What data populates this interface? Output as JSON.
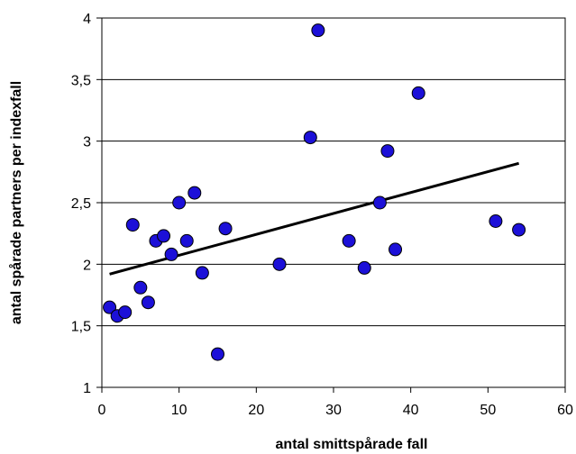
{
  "chart_data": {
    "type": "scatter",
    "title": "",
    "xlabel": "antal smittspårade fall",
    "ylabel": "antal spårade partners per indexfall",
    "xlim": [
      0,
      60
    ],
    "ylim": [
      1,
      4
    ],
    "x_ticks": [
      0,
      10,
      20,
      30,
      40,
      50,
      60
    ],
    "x_tick_labels": [
      "0",
      "10",
      "20",
      "30",
      "40",
      "50",
      "60"
    ],
    "y_ticks": [
      1,
      1.5,
      2,
      2.5,
      3,
      3.5,
      4
    ],
    "y_tick_labels": [
      "1",
      "1,5",
      "2",
      "2,5",
      "3",
      "3,5",
      "4"
    ],
    "grid": "horizontal",
    "legend": "none",
    "colors": {
      "points": "#1c10d8",
      "point_outline": "#000000",
      "trendline": "#000000",
      "grid": "#000000"
    },
    "series": [
      {
        "x": [
          1,
          2,
          3,
          4,
          5,
          6,
          7,
          8,
          9,
          10,
          11,
          12,
          13,
          15,
          16,
          23,
          27,
          28,
          32,
          34,
          36,
          37,
          38,
          41,
          51,
          54
        ],
        "y": [
          1.65,
          1.58,
          1.61,
          2.32,
          1.81,
          1.69,
          2.19,
          2.23,
          2.08,
          2.5,
          2.19,
          2.58,
          1.93,
          1.27,
          2.29,
          2.0,
          3.03,
          3.9,
          2.19,
          1.97,
          2.5,
          2.92,
          2.12,
          3.39,
          2.35,
          2.28
        ]
      }
    ],
    "trendline": {
      "x": [
        1,
        54
      ],
      "y": [
        1.92,
        2.82
      ]
    }
  }
}
